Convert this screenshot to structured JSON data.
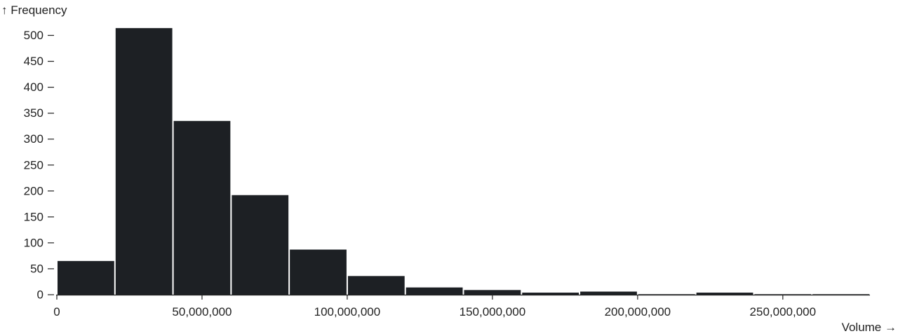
{
  "chart_data": {
    "type": "bar",
    "xlabel": "Volume →",
    "ylabel": "↑ Frequency",
    "xlim": [
      0,
      280000000
    ],
    "ylim": [
      0,
      525
    ],
    "bin_width": 20000000,
    "bins": [
      {
        "x0": 0,
        "x1": 20000000,
        "value": 65
      },
      {
        "x0": 20000000,
        "x1": 40000000,
        "value": 514
      },
      {
        "x0": 40000000,
        "x1": 60000000,
        "value": 335
      },
      {
        "x0": 60000000,
        "x1": 80000000,
        "value": 192
      },
      {
        "x0": 80000000,
        "x1": 100000000,
        "value": 87
      },
      {
        "x0": 100000000,
        "x1": 120000000,
        "value": 36
      },
      {
        "x0": 120000000,
        "x1": 140000000,
        "value": 14
      },
      {
        "x0": 140000000,
        "x1": 160000000,
        "value": 9
      },
      {
        "x0": 160000000,
        "x1": 180000000,
        "value": 4
      },
      {
        "x0": 180000000,
        "x1": 200000000,
        "value": 6
      },
      {
        "x0": 200000000,
        "x1": 220000000,
        "value": 1
      },
      {
        "x0": 220000000,
        "x1": 240000000,
        "value": 4
      },
      {
        "x0": 240000000,
        "x1": 260000000,
        "value": 1
      },
      {
        "x0": 260000000,
        "x1": 280000000,
        "value": 1
      }
    ],
    "x_ticks": [
      {
        "value": 0,
        "label": "0"
      },
      {
        "value": 50000000,
        "label": "50,000,000"
      },
      {
        "value": 100000000,
        "label": "100,000,000"
      },
      {
        "value": 150000000,
        "label": "150,000,000"
      },
      {
        "value": 200000000,
        "label": "200,000,000"
      },
      {
        "value": 250000000,
        "label": "250,000,000"
      }
    ],
    "y_ticks": [
      {
        "value": 0,
        "label": "0"
      },
      {
        "value": 50,
        "label": "50"
      },
      {
        "value": 100,
        "label": "100"
      },
      {
        "value": 150,
        "label": "150"
      },
      {
        "value": 200,
        "label": "200"
      },
      {
        "value": 250,
        "label": "250"
      },
      {
        "value": 300,
        "label": "300"
      },
      {
        "value": 350,
        "label": "350"
      },
      {
        "value": 400,
        "label": "400"
      },
      {
        "value": 450,
        "label": "450"
      },
      {
        "value": 500,
        "label": "500"
      }
    ],
    "grid": false,
    "colors": {
      "bar": "#1d2024",
      "axis": "#222222"
    }
  }
}
